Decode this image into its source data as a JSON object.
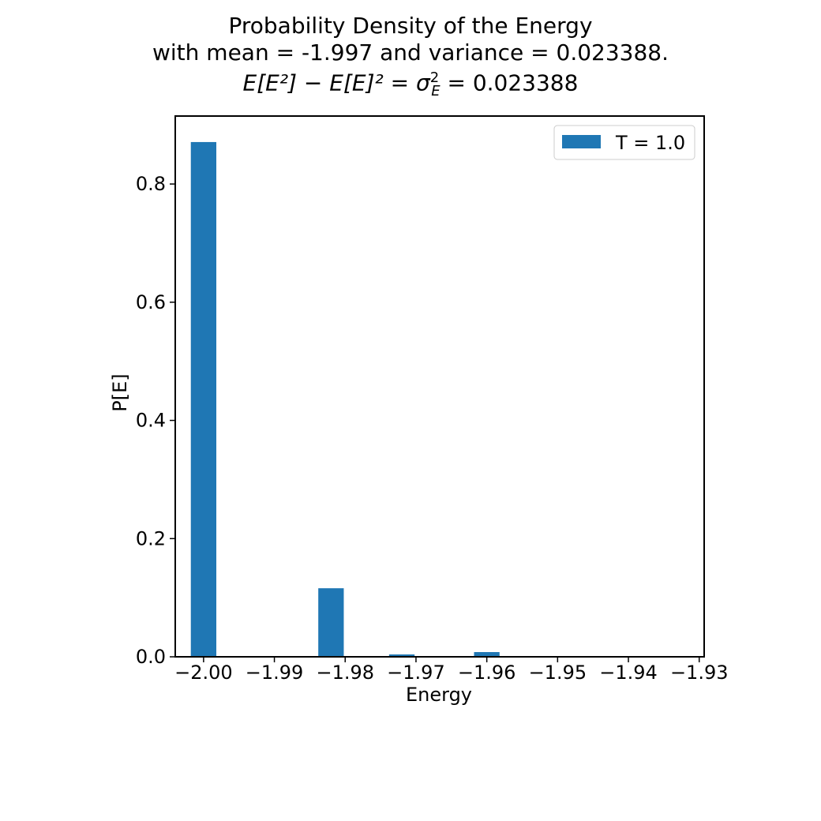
{
  "chart_data": {
    "type": "bar",
    "title_lines": [
      "Probability Density of the Energy",
      "with mean = -1.997 and variance = 0.023388."
    ],
    "title_formula": {
      "lhs": "E[E²] − E[E]² = σ",
      "sup": "2",
      "sub": "E",
      "rhs": " = 0.023388"
    },
    "xlabel": "Energy",
    "ylabel": "P[E]",
    "xlim": [
      -2.004,
      -1.9293
    ],
    "ylim": [
      0,
      0.915
    ],
    "xticks": [
      -2.0,
      -1.99,
      -1.98,
      -1.97,
      -1.96,
      -1.95,
      -1.94,
      -1.93
    ],
    "xtick_labels": [
      "−2.00",
      "−1.99",
      "−1.98",
      "−1.97",
      "−1.96",
      "−1.95",
      "−1.94",
      "−1.93"
    ],
    "yticks": [
      0.0,
      0.2,
      0.4,
      0.6,
      0.8
    ],
    "ytick_labels": [
      "0.0",
      "0.2",
      "0.4",
      "0.6",
      "0.8"
    ],
    "bar_width": 0.0036,
    "series": [
      {
        "name": "T = 1.0",
        "color": "#1f77b4",
        "x": [
          -2.0,
          -1.984,
          -1.982,
          -1.975,
          -1.972,
          -1.9625,
          -1.96,
          -1.95,
          -1.94,
          -1.932
        ],
        "values": [
          0.871,
          0.0,
          0.116,
          0.0,
          0.004,
          0.0,
          0.008,
          0.0,
          0.0,
          0.0
        ]
      }
    ],
    "legend": {
      "position": "upper right"
    },
    "grid": false
  }
}
